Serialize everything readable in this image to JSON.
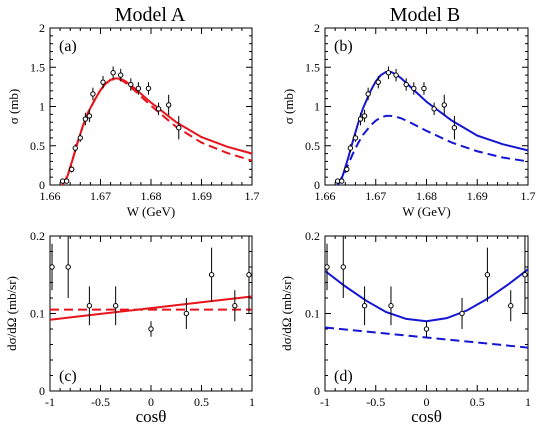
{
  "colors": {
    "model_a": "#e8141c",
    "model_b": "#1515d4",
    "axes": "#000000"
  },
  "titles": {
    "model_a": "Model A",
    "model_b": "Model B"
  },
  "chart_data": [
    {
      "id": "a",
      "type": "line",
      "panel_label": "(a)",
      "xlabel": "W (GeV)",
      "ylabel": "σ (mb)",
      "xlim": [
        1.66,
        1.7
      ],
      "ylim": [
        0,
        2
      ],
      "xticks": [
        1.66,
        1.67,
        1.68,
        1.69,
        1.7
      ],
      "xtick_labels": [
        "1.66",
        "1.67",
        "1.68",
        "1.69",
        "1.7"
      ],
      "yticks": [
        0,
        0.5,
        1,
        1.5,
        2
      ],
      "ytick_labels": [
        "0",
        "0.5",
        "1",
        "1.5",
        "2"
      ],
      "series": [
        {
          "style": "solid",
          "color": "#e8141c",
          "x": [
            1.6625,
            1.6635,
            1.6645,
            1.6655,
            1.6665,
            1.6675,
            1.669,
            1.67,
            1.671,
            1.672,
            1.673,
            1.674,
            1.675,
            1.677,
            1.68,
            1.685,
            1.69,
            1.695,
            1.7
          ],
          "y": [
            0.0,
            0.12,
            0.33,
            0.55,
            0.75,
            0.92,
            1.1,
            1.21,
            1.29,
            1.34,
            1.36,
            1.35,
            1.32,
            1.22,
            1.05,
            0.8,
            0.61,
            0.49,
            0.4
          ]
        },
        {
          "style": "dashed",
          "color": "#e8141c",
          "x": [
            1.6625,
            1.6635,
            1.6645,
            1.6655,
            1.6665,
            1.6675,
            1.669,
            1.67,
            1.671,
            1.672,
            1.673,
            1.674,
            1.675,
            1.677,
            1.68,
            1.685,
            1.69,
            1.695,
            1.7
          ],
          "y": [
            0.0,
            0.12,
            0.33,
            0.55,
            0.75,
            0.92,
            1.1,
            1.21,
            1.29,
            1.34,
            1.35,
            1.34,
            1.3,
            1.19,
            1.01,
            0.74,
            0.54,
            0.41,
            0.31
          ]
        }
      ],
      "points": [
        {
          "x": 1.6625,
          "y": 0.05,
          "err": 0.0
        },
        {
          "x": 1.6633,
          "y": 0.05,
          "err": 0.0
        },
        {
          "x": 1.6643,
          "y": 0.2,
          "err": 0.04
        },
        {
          "x": 1.665,
          "y": 0.47,
          "err": 0.05
        },
        {
          "x": 1.666,
          "y": 0.6,
          "err": 0.05
        },
        {
          "x": 1.667,
          "y": 0.84,
          "err": 0.08
        },
        {
          "x": 1.6678,
          "y": 0.88,
          "err": 0.08
        },
        {
          "x": 1.6685,
          "y": 1.16,
          "err": 0.08
        },
        {
          "x": 1.6705,
          "y": 1.31,
          "err": 0.08
        },
        {
          "x": 1.6725,
          "y": 1.43,
          "err": 0.08
        },
        {
          "x": 1.674,
          "y": 1.4,
          "err": 0.08
        },
        {
          "x": 1.676,
          "y": 1.28,
          "err": 0.08
        },
        {
          "x": 1.6775,
          "y": 1.23,
          "err": 0.08
        },
        {
          "x": 1.6795,
          "y": 1.23,
          "err": 0.08
        },
        {
          "x": 1.6815,
          "y": 0.97,
          "err": 0.08
        },
        {
          "x": 1.6835,
          "y": 1.02,
          "err": 0.13
        },
        {
          "x": 1.6855,
          "y": 0.73,
          "err": 0.15
        }
      ]
    },
    {
      "id": "b",
      "type": "line",
      "panel_label": "(b)",
      "xlabel": "W (GeV)",
      "ylabel": "σ (mb)",
      "xlim": [
        1.66,
        1.7
      ],
      "ylim": [
        0,
        2
      ],
      "xticks": [
        1.66,
        1.67,
        1.68,
        1.69,
        1.7
      ],
      "xtick_labels": [
        "1.66",
        "1.67",
        "1.68",
        "1.69",
        "1.7"
      ],
      "yticks": [
        0,
        0.5,
        1,
        1.5,
        2
      ],
      "ytick_labels": [
        "0",
        "0.5",
        "1",
        "1.5",
        "2"
      ],
      "series": [
        {
          "style": "solid",
          "color": "#1515d4",
          "x": [
            1.6625,
            1.6635,
            1.6645,
            1.6655,
            1.6665,
            1.6675,
            1.669,
            1.67,
            1.671,
            1.672,
            1.673,
            1.674,
            1.675,
            1.677,
            1.68,
            1.685,
            1.69,
            1.695,
            1.7
          ],
          "y": [
            0.0,
            0.12,
            0.33,
            0.56,
            0.78,
            0.98,
            1.2,
            1.32,
            1.4,
            1.44,
            1.44,
            1.41,
            1.36,
            1.24,
            1.06,
            0.82,
            0.63,
            0.52,
            0.44
          ]
        },
        {
          "style": "dashed",
          "color": "#1515d4",
          "x": [
            1.6625,
            1.6635,
            1.6645,
            1.6655,
            1.6665,
            1.6675,
            1.669,
            1.67,
            1.671,
            1.672,
            1.673,
            1.674,
            1.675,
            1.677,
            1.68,
            1.685,
            1.69,
            1.695,
            1.7
          ],
          "y": [
            0.0,
            0.1,
            0.25,
            0.4,
            0.53,
            0.64,
            0.76,
            0.82,
            0.86,
            0.88,
            0.88,
            0.87,
            0.85,
            0.79,
            0.69,
            0.54,
            0.43,
            0.35,
            0.3
          ]
        }
      ],
      "points": [
        {
          "x": 1.6625,
          "y": 0.05,
          "err": 0.0
        },
        {
          "x": 1.6633,
          "y": 0.05,
          "err": 0.0
        },
        {
          "x": 1.6643,
          "y": 0.2,
          "err": 0.04
        },
        {
          "x": 1.665,
          "y": 0.47,
          "err": 0.05
        },
        {
          "x": 1.666,
          "y": 0.6,
          "err": 0.05
        },
        {
          "x": 1.667,
          "y": 0.84,
          "err": 0.08
        },
        {
          "x": 1.6678,
          "y": 0.88,
          "err": 0.08
        },
        {
          "x": 1.6685,
          "y": 1.16,
          "err": 0.08
        },
        {
          "x": 1.6705,
          "y": 1.31,
          "err": 0.08
        },
        {
          "x": 1.6725,
          "y": 1.43,
          "err": 0.08
        },
        {
          "x": 1.674,
          "y": 1.4,
          "err": 0.08
        },
        {
          "x": 1.676,
          "y": 1.28,
          "err": 0.08
        },
        {
          "x": 1.6775,
          "y": 1.23,
          "err": 0.08
        },
        {
          "x": 1.6795,
          "y": 1.23,
          "err": 0.08
        },
        {
          "x": 1.6815,
          "y": 0.97,
          "err": 0.08
        },
        {
          "x": 1.6835,
          "y": 1.02,
          "err": 0.13
        },
        {
          "x": 1.6855,
          "y": 0.73,
          "err": 0.15
        }
      ]
    },
    {
      "id": "c",
      "type": "line",
      "panel_label": "(c)",
      "xlabel": "cosθ",
      "ylabel": "dσ/dΩ (mb/sr)",
      "xlim": [
        -1,
        1
      ],
      "ylim": [
        0,
        0.2
      ],
      "xticks": [
        -1,
        -0.5,
        0,
        0.5,
        1
      ],
      "xtick_labels": [
        "-1",
        "-0.5",
        "0",
        "0.5",
        "1"
      ],
      "yticks": [
        0,
        0.1,
        0.2
      ],
      "ytick_labels": [
        "0",
        "0.1",
        "0.2"
      ],
      "series": [
        {
          "style": "solid",
          "color": "#e8141c",
          "x": [
            -1,
            -0.5,
            0,
            0.5,
            1
          ],
          "y": [
            0.092,
            0.0995,
            0.107,
            0.1145,
            0.122
          ]
        },
        {
          "style": "dashed",
          "color": "#e8141c",
          "x": [
            -1,
            -0.5,
            0,
            0.5,
            1
          ],
          "y": [
            0.105,
            0.105,
            0.105,
            0.105,
            0.105
          ]
        }
      ],
      "points": [
        {
          "x": -0.98,
          "y": 0.16,
          "err": 0.03
        },
        {
          "x": -0.82,
          "y": 0.16,
          "err": 0.04
        },
        {
          "x": -0.61,
          "y": 0.11,
          "err": 0.025
        },
        {
          "x": -0.35,
          "y": 0.11,
          "err": 0.025
        },
        {
          "x": 0.0,
          "y": 0.08,
          "err": 0.01
        },
        {
          "x": 0.35,
          "y": 0.1,
          "err": 0.02
        },
        {
          "x": 0.6,
          "y": 0.15,
          "err": 0.035
        },
        {
          "x": 0.83,
          "y": 0.11,
          "err": 0.02
        },
        {
          "x": 0.97,
          "y": 0.15,
          "err": 0.05
        }
      ]
    },
    {
      "id": "d",
      "type": "line",
      "panel_label": "(d)",
      "xlabel": "cosθ",
      "ylabel": "dσ/dΩ (mb/sr)",
      "xlim": [
        -1,
        1
      ],
      "ylim": [
        0,
        0.2
      ],
      "xticks": [
        -1,
        -0.5,
        0,
        0.5,
        1
      ],
      "xtick_labels": [
        "-1",
        "-0.5",
        "0",
        "0.5",
        "1"
      ],
      "yticks": [
        0,
        0.1,
        0.2
      ],
      "ytick_labels": [
        "0",
        "0.1",
        "0.2"
      ],
      "series": [
        {
          "style": "solid",
          "color": "#1515d4",
          "x": [
            -1,
            -0.8,
            -0.6,
            -0.4,
            -0.2,
            0,
            0.2,
            0.4,
            0.6,
            0.8,
            1
          ],
          "y": [
            0.155,
            0.135,
            0.117,
            0.102,
            0.093,
            0.09,
            0.094,
            0.104,
            0.119,
            0.137,
            0.157
          ]
        },
        {
          "style": "dashed",
          "color": "#1515d4",
          "x": [
            -1,
            -0.5,
            0,
            0.5,
            1
          ],
          "y": [
            0.082,
            0.0755,
            0.069,
            0.0625,
            0.056
          ]
        }
      ],
      "points": [
        {
          "x": -0.98,
          "y": 0.16,
          "err": 0.03
        },
        {
          "x": -0.82,
          "y": 0.16,
          "err": 0.04
        },
        {
          "x": -0.61,
          "y": 0.11,
          "err": 0.025
        },
        {
          "x": -0.35,
          "y": 0.11,
          "err": 0.025
        },
        {
          "x": 0.0,
          "y": 0.08,
          "err": 0.01
        },
        {
          "x": 0.35,
          "y": 0.1,
          "err": 0.02
        },
        {
          "x": 0.6,
          "y": 0.15,
          "err": 0.035
        },
        {
          "x": 0.83,
          "y": 0.11,
          "err": 0.02
        },
        {
          "x": 0.97,
          "y": 0.15,
          "err": 0.05
        }
      ]
    }
  ]
}
